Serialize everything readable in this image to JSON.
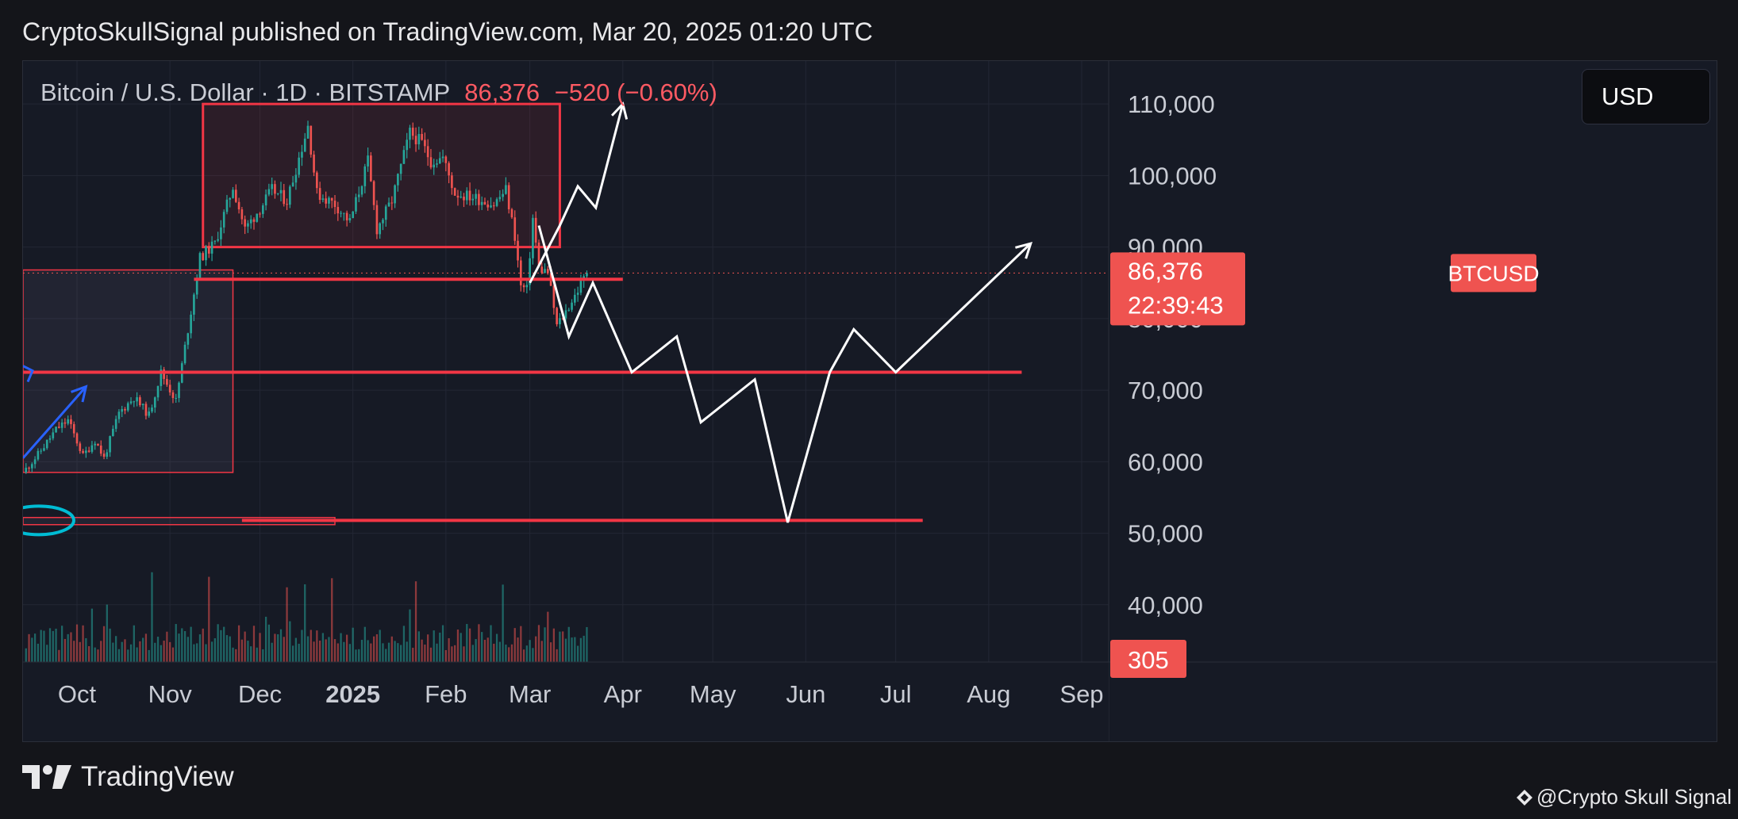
{
  "header": {
    "published_text": "CryptoSkullSignal published on TradingView.com, Mar 20, 2025 01:20 UTC"
  },
  "symbol": {
    "name": "Bitcoin / U.S. Dollar · 1D · BITSTAMP",
    "price": "86,376",
    "change": "−520 (−0.60%)"
  },
  "currency_button": "USD",
  "footer": {
    "brand": "TradingView",
    "watermark": "@Crypto Skull Signal"
  },
  "colors": {
    "background": "#161a25",
    "up": "#26a69a",
    "down": "#ef5350",
    "annotation_red": "#f23645",
    "projection": "#ffffff",
    "arrow_blue": "#2962ff",
    "ellipse_cyan": "#00bcd4"
  },
  "chart_data": {
    "type": "candlestick",
    "symbol": "BTCUSD",
    "ylim": [
      32000,
      116000
    ],
    "y_ticks": [
      {
        "value": 110000,
        "label": "110,000"
      },
      {
        "value": 100000,
        "label": "100,000"
      },
      {
        "value": 90000,
        "label": "90,000"
      },
      {
        "value": 80000,
        "label": "80,000"
      },
      {
        "value": 70000,
        "label": "70,000"
      },
      {
        "value": 60000,
        "label": "60,000"
      },
      {
        "value": 50000,
        "label": "50,000"
      },
      {
        "value": 40000,
        "label": "40,000"
      }
    ],
    "x_range": [
      "2024-09-13",
      "2025-09-10"
    ],
    "x_ticks": [
      {
        "date": "2024-10-01",
        "label": "Oct",
        "bold": false
      },
      {
        "date": "2024-11-01",
        "label": "Nov",
        "bold": false
      },
      {
        "date": "2024-12-01",
        "label": "Dec",
        "bold": false
      },
      {
        "date": "2025-01-01",
        "label": "2025",
        "bold": true
      },
      {
        "date": "2025-02-01",
        "label": "Feb",
        "bold": false
      },
      {
        "date": "2025-03-01",
        "label": "Mar",
        "bold": false
      },
      {
        "date": "2025-04-01",
        "label": "Apr",
        "bold": false
      },
      {
        "date": "2025-05-01",
        "label": "May",
        "bold": false
      },
      {
        "date": "2025-06-01",
        "label": "Jun",
        "bold": false
      },
      {
        "date": "2025-07-01",
        "label": "Jul",
        "bold": false
      },
      {
        "date": "2025-08-01",
        "label": "Aug",
        "bold": false
      },
      {
        "date": "2025-09-01",
        "label": "Sep",
        "bold": false
      }
    ],
    "price_path": [
      [
        "2024-09-13",
        58500
      ],
      [
        "2024-09-18",
        61000
      ],
      [
        "2024-09-24",
        64500
      ],
      [
        "2024-09-28",
        65800
      ],
      [
        "2024-10-03",
        60800
      ],
      [
        "2024-10-07",
        63000
      ],
      [
        "2024-10-10",
        60500
      ],
      [
        "2024-10-15",
        66800
      ],
      [
        "2024-10-20",
        69000
      ],
      [
        "2024-10-25",
        66500
      ],
      [
        "2024-10-29",
        72500
      ],
      [
        "2024-11-03",
        68500
      ],
      [
        "2024-11-06",
        76000
      ],
      [
        "2024-11-11",
        88500
      ],
      [
        "2024-11-16",
        90500
      ],
      [
        "2024-11-22",
        98500
      ],
      [
        "2024-11-26",
        92500
      ],
      [
        "2024-12-02",
        96000
      ],
      [
        "2024-12-05",
        98000
      ],
      [
        "2024-12-10",
        96500
      ],
      [
        "2024-12-17",
        107000
      ],
      [
        "2024-12-20",
        97500
      ],
      [
        "2024-12-26",
        96000
      ],
      [
        "2024-12-31",
        93500
      ],
      [
        "2025-01-06",
        102000
      ],
      [
        "2025-01-09",
        92500
      ],
      [
        "2025-01-14",
        96500
      ],
      [
        "2025-01-20",
        106000
      ],
      [
        "2025-01-24",
        104500
      ],
      [
        "2025-01-27",
        102000
      ],
      [
        "2025-01-31",
        102500
      ],
      [
        "2025-02-04",
        97500
      ],
      [
        "2025-02-10",
        97000
      ],
      [
        "2025-02-17",
        96000
      ],
      [
        "2025-02-21",
        98000
      ],
      [
        "2025-02-24",
        91500
      ],
      [
        "2025-02-26",
        84500
      ],
      [
        "2025-02-28",
        84000
      ],
      [
        "2025-03-02",
        94000
      ],
      [
        "2025-03-04",
        87000
      ],
      [
        "2025-03-07",
        86500
      ],
      [
        "2025-03-10",
        79000
      ],
      [
        "2025-03-13",
        81000
      ],
      [
        "2025-03-17",
        84000
      ],
      [
        "2025-03-20",
        86376
      ]
    ],
    "volume_scale_max": 2000,
    "last_volume": 305,
    "last_price": 86376,
    "last_price_label": "86,376",
    "countdown": "22:39:43",
    "symbol_tag": "BTCUSD",
    "volume_label": "305",
    "zones": [
      {
        "from": "2024-11-12",
        "to": "2025-03-11",
        "top": 110000,
        "bottom": 90000
      },
      {
        "from": "2024-09-13",
        "to": "2024-11-22",
        "top": 86800,
        "bottom": 58500
      },
      {
        "from": "2024-09-13",
        "to": "2024-12-26",
        "top": 52200,
        "bottom": 51200
      }
    ],
    "horizontal_levels": [
      {
        "from": "2024-11-09",
        "to": "2025-04-01",
        "value": 85500
      },
      {
        "from": "2024-09-13",
        "to": "2025-08-12",
        "value": 72500
      },
      {
        "from": "2024-11-25",
        "to": "2025-07-10",
        "value": 51800
      }
    ],
    "projection_up": [
      [
        "2025-03-01",
        85000
      ],
      [
        "2025-03-11",
        93000
      ],
      [
        "2025-03-17",
        98500
      ],
      [
        "2025-03-23",
        95500
      ],
      [
        "2025-04-01",
        110000
      ]
    ],
    "projection_main": [
      [
        "2025-03-04",
        93000
      ],
      [
        "2025-03-14",
        77500
      ],
      [
        "2025-03-22",
        85000
      ],
      [
        "2025-04-04",
        72500
      ],
      [
        "2025-04-19",
        77500
      ],
      [
        "2025-04-27",
        65500
      ],
      [
        "2025-05-15",
        71500
      ],
      [
        "2025-05-26",
        51500
      ],
      [
        "2025-06-09",
        72500
      ],
      [
        "2025-06-17",
        78500
      ],
      [
        "2025-07-01",
        72500
      ],
      [
        "2025-08-15",
        90500
      ]
    ],
    "blue_arrow": [
      [
        "2024-09-13",
        60500
      ],
      [
        "2024-10-04",
        70500
      ]
    ],
    "blue_arrow_small": [
      "2024-09-13",
      72500
    ]
  }
}
